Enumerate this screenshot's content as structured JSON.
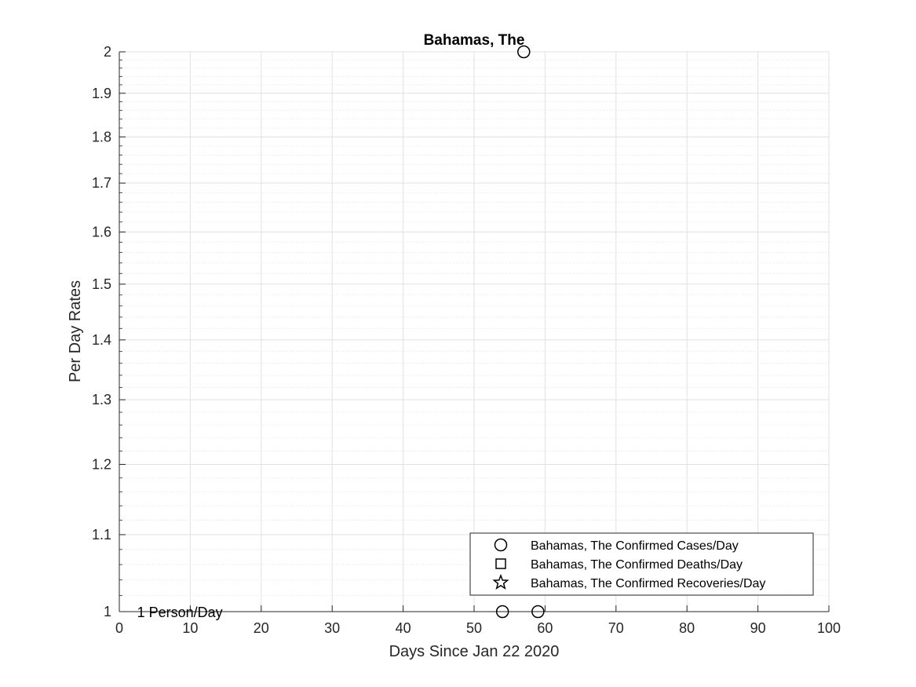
{
  "chart_data": {
    "type": "scatter",
    "title": "Bahamas, The",
    "xlabel": "Days Since Jan 22 2020",
    "ylabel": "Per Day Rates",
    "xlim": [
      0,
      100
    ],
    "ylim": [
      1,
      2
    ],
    "yscale": "log",
    "grid": true,
    "minor_grid": true,
    "x_ticks": [
      0,
      10,
      20,
      30,
      40,
      50,
      60,
      70,
      80,
      90,
      100
    ],
    "y_ticks": [
      1,
      1.1,
      1.2,
      1.3,
      1.4,
      1.5,
      1.6,
      1.7,
      1.8,
      1.9,
      2
    ],
    "x_tick_labels": [
      "0",
      "10",
      "20",
      "30",
      "40",
      "50",
      "60",
      "70",
      "80",
      "90",
      "100"
    ],
    "y_tick_labels": [
      "1",
      "1.1",
      "1.2",
      "1.3",
      "1.4",
      "1.5",
      "1.6",
      "1.7",
      "1.8",
      "1.9",
      "2"
    ],
    "legend_position": "bottom-right",
    "series": [
      {
        "name": "Bahamas, The Confirmed Cases/Day",
        "marker": "circle",
        "points": [
          {
            "x": 54,
            "y": 1
          },
          {
            "x": 57,
            "y": 2
          },
          {
            "x": 59,
            "y": 1
          }
        ]
      },
      {
        "name": "Bahamas, The Confirmed Deaths/Day",
        "marker": "square",
        "points": []
      },
      {
        "name": "Bahamas, The Confirmed Recoveries/Day",
        "marker": "star",
        "points": []
      }
    ],
    "annotations": [
      {
        "text": "1 Person/Day",
        "x": 2.5,
        "y": 1
      }
    ],
    "colors": {
      "marker": "#000000",
      "grid": "#e0e0e0",
      "axis": "#262626"
    }
  }
}
